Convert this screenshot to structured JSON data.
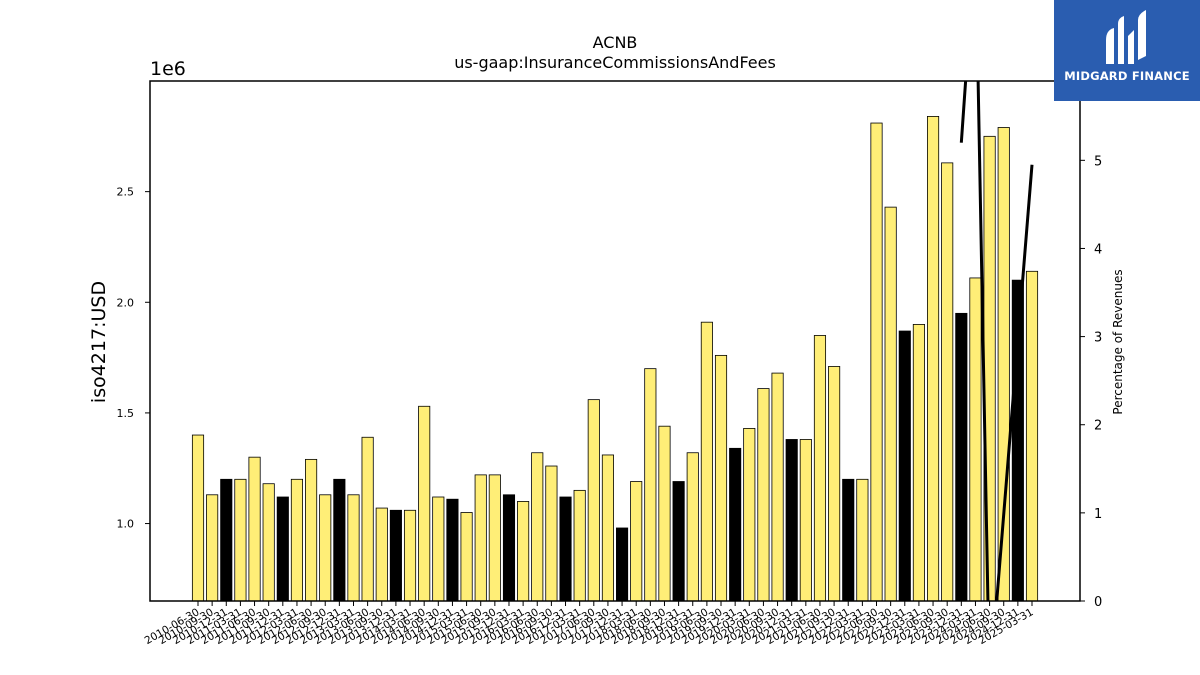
{
  "chart_data": {
    "type": "bar",
    "title": "ACNB",
    "subtitle": "us-gaap:InsuranceCommissionsAndFees",
    "ylabel": "iso4217:USD",
    "y_multiplier_label": "1e6",
    "y2label": "Percentage of Revenues",
    "ylim": [
      0.65,
      3.0
    ],
    "y2lim": [
      0,
      5.9
    ],
    "yticks": [
      1.0,
      1.5,
      2.0,
      2.5
    ],
    "y2ticks": [
      0,
      1,
      2,
      3,
      4,
      5
    ],
    "grid": false,
    "categories": [
      "2010-06-30",
      "2010-09-30",
      "2010-12-31",
      "2011-03-31",
      "2011-06-30",
      "2011-09-30",
      "2011-12-31",
      "2012-03-31",
      "2012-06-30",
      "2012-09-30",
      "2012-12-31",
      "2013-03-31",
      "2013-06-30",
      "2013-09-30",
      "2013-12-31",
      "2014-03-31",
      "2014-06-30",
      "2014-09-30",
      "2014-12-31",
      "2015-03-31",
      "2015-06-30",
      "2015-09-30",
      "2015-12-31",
      "2016-03-31",
      "2016-06-30",
      "2016-09-30",
      "2016-12-31",
      "2017-03-31",
      "2017-06-30",
      "2017-09-30",
      "2017-12-31",
      "2018-03-31",
      "2018-06-30",
      "2018-09-30",
      "2018-12-31",
      "2019-03-31",
      "2019-06-30",
      "2019-09-30",
      "2019-12-31",
      "2020-03-31",
      "2020-06-30",
      "2020-09-30",
      "2020-12-31",
      "2021-03-31",
      "2021-06-30",
      "2021-09-30",
      "2021-12-31",
      "2022-03-31",
      "2022-06-30",
      "2022-09-30",
      "2022-12-31",
      "2023-03-31",
      "2023-06-30",
      "2023-09-30",
      "2023-12-31",
      "2024-03-31",
      "2024-06-30",
      "2024-09-30",
      "2024-12-31",
      "2025-03-31"
    ],
    "series": [
      {
        "values": [
          1.4,
          1.13,
          1.2,
          1.2,
          1.3,
          1.18,
          1.12,
          1.2,
          1.29,
          1.13,
          1.2,
          1.13,
          1.39,
          1.07,
          1.06,
          1.06,
          1.53,
          1.12,
          1.11,
          1.05,
          1.22,
          1.22,
          1.13,
          1.1,
          1.32,
          1.26,
          1.12,
          1.15,
          1.56,
          1.31,
          0.98,
          1.19,
          1.7,
          1.44,
          1.19,
          1.32,
          1.91,
          1.76,
          1.34,
          1.43,
          1.61,
          1.68,
          1.38,
          1.38,
          1.85,
          1.71,
          1.2,
          1.2,
          2.81,
          2.43,
          1.87,
          1.9,
          2.84,
          2.63,
          1.95,
          2.11,
          2.75,
          2.79,
          2.1,
          2.14
        ],
        "colors": [
          "#ffee77",
          "#ffee77",
          "#000000",
          "#ffee77",
          "#ffee77",
          "#ffee77",
          "#000000",
          "#ffee77",
          "#ffee77",
          "#ffee77",
          "#000000",
          "#ffee77",
          "#ffee77",
          "#ffee77",
          "#000000",
          "#ffee77",
          "#ffee77",
          "#ffee77",
          "#000000",
          "#ffee77",
          "#ffee77",
          "#ffee77",
          "#000000",
          "#ffee77",
          "#ffee77",
          "#ffee77",
          "#000000",
          "#ffee77",
          "#ffee77",
          "#ffee77",
          "#000000",
          "#ffee77",
          "#ffee77",
          "#ffee77",
          "#000000",
          "#ffee77",
          "#ffee77",
          "#ffee77",
          "#000000",
          "#ffee77",
          "#ffee77",
          "#ffee77",
          "#000000",
          "#ffee77",
          "#ffee77",
          "#ffee77",
          "#000000",
          "#ffee77",
          "#ffee77",
          "#ffee77",
          "#000000",
          "#ffee77",
          "#ffee77",
          "#ffee77",
          "#000000",
          "#ffee77",
          "#ffee77",
          "#ffee77",
          "#000000",
          "#ffee77"
        ]
      },
      {
        "type": "line",
        "axis": "right",
        "x": [
          "2023-12-31",
          "2024-03-31",
          "2024-06-30",
          "2025-03-31"
        ],
        "values": [
          5.2,
          7.5,
          -1.0,
          4.95
        ],
        "color": "#000000"
      }
    ]
  },
  "logo": {
    "text": "MIDGARD FINANCE",
    "background": "#2a5db0"
  }
}
